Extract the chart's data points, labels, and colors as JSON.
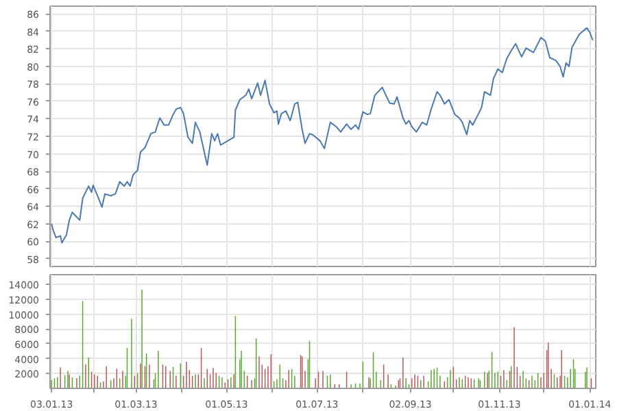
{
  "chart_data": [
    {
      "type": "line",
      "xlim": [
        "2013-01-02",
        "2014-01-05"
      ],
      "ylim": [
        57.1,
        86.9
      ],
      "xticks": [
        {
          "value": "2013-01-03",
          "label": null
        },
        {
          "value": "2013-02-01",
          "label": null
        },
        {
          "value": "2013-03-01",
          "label": null
        },
        {
          "value": "2013-04-01",
          "label": null
        },
        {
          "value": "2013-05-01",
          "label": null
        },
        {
          "value": "2013-06-01",
          "label": null
        },
        {
          "value": "2013-07-01",
          "label": null
        },
        {
          "value": "2013-08-01",
          "label": null
        },
        {
          "value": "2013-09-02",
          "label": null
        },
        {
          "value": "2013-10-01",
          "label": null
        },
        {
          "value": "2013-11-01",
          "label": null
        },
        {
          "value": "2013-12-01",
          "label": null
        },
        {
          "value": "2014-01-01",
          "label": null
        }
      ],
      "yticks": [
        58,
        60,
        62,
        64,
        66,
        68,
        70,
        72,
        74,
        76,
        78,
        80,
        82,
        84,
        86
      ],
      "grid": true,
      "tick_labels": "y",
      "series": [
        {
          "color": "#4a78b0",
          "x": [
            "2013-01-03",
            "2013-01-04",
            "2013-01-06",
            "2013-01-09",
            "2013-01-10",
            "2013-01-13",
            "2013-01-15",
            "2013-01-17",
            "2013-01-22",
            "2013-01-24",
            "2013-01-28",
            "2013-01-30",
            "2013-01-31",
            "2013-02-03",
            "2013-02-06",
            "2013-02-08",
            "2013-02-12",
            "2013-02-15",
            "2013-02-18",
            "2013-02-21",
            "2013-02-23",
            "2013-02-25",
            "2013-02-27",
            "2013-03-02",
            "2013-03-04",
            "2013-03-07",
            "2013-03-09",
            "2013-03-11",
            "2013-03-14",
            "2013-03-17",
            "2013-03-20",
            "2013-03-23",
            "2013-03-26",
            "2013-03-28",
            "2013-03-31",
            "2013-04-02",
            "2013-04-05",
            "2013-04-08",
            "2013-04-10",
            "2013-04-13",
            "2013-04-16",
            "2013-04-18",
            "2013-04-21",
            "2013-04-23",
            "2013-04-25",
            "2013-04-27",
            "2013-05-02",
            "2013-05-06",
            "2013-05-07",
            "2013-05-10",
            "2013-05-14",
            "2013-05-16",
            "2013-05-18",
            "2013-05-22",
            "2013-05-24",
            "2013-05-27",
            "2013-05-30",
            "2013-06-02",
            "2013-06-04",
            "2013-06-05",
            "2013-06-07",
            "2013-06-10",
            "2013-06-13",
            "2013-06-16",
            "2013-06-18",
            "2013-06-21",
            "2013-06-23",
            "2013-06-26",
            "2013-06-28",
            "2013-07-03",
            "2013-07-06",
            "2013-07-10",
            "2013-07-14",
            "2013-07-17",
            "2013-07-21",
            "2013-07-24",
            "2013-07-27",
            "2013-07-29",
            "2013-08-01",
            "2013-08-04",
            "2013-08-06",
            "2013-08-09",
            "2013-08-14",
            "2013-08-19",
            "2013-08-22",
            "2013-08-24",
            "2013-08-28",
            "2013-08-30",
            "2013-09-01",
            "2013-09-03",
            "2013-09-06",
            "2013-09-10",
            "2013-09-13",
            "2013-09-16",
            "2013-09-20",
            "2013-09-22",
            "2013-09-25",
            "2013-09-28",
            "2013-10-02",
            "2013-10-05",
            "2013-10-07",
            "2013-10-10",
            "2013-10-12",
            "2013-10-14",
            "2013-10-18",
            "2013-10-20",
            "2013-10-22",
            "2013-10-26",
            "2013-10-28",
            "2013-10-31",
            "2013-11-03",
            "2013-11-06",
            "2013-11-09",
            "2013-11-12",
            "2013-11-16",
            "2013-11-19",
            "2013-11-22",
            "2013-11-24",
            "2013-11-29",
            "2013-12-02",
            "2013-12-05",
            "2013-12-09",
            "2013-12-12",
            "2013-12-14",
            "2013-12-16",
            "2013-12-18",
            "2013-12-20",
            "2013-12-25",
            "2013-12-30",
            "2014-01-01",
            "2014-01-03"
          ],
          "values": [
            62.0,
            61.3,
            60.4,
            60.6,
            59.8,
            60.7,
            62.4,
            63.3,
            62.4,
            64.9,
            66.3,
            65.6,
            66.4,
            65.2,
            63.9,
            65.4,
            65.2,
            65.4,
            66.8,
            66.3,
            66.8,
            66.3,
            67.6,
            68.1,
            70.2,
            70.7,
            71.5,
            72.3,
            72.5,
            74.1,
            73.3,
            73.3,
            74.5,
            75.1,
            75.3,
            74.6,
            71.9,
            71.2,
            73.6,
            72.5,
            70.2,
            68.7,
            72.3,
            71.5,
            72.3,
            71.0,
            71.5,
            71.9,
            75.0,
            76.2,
            76.7,
            77.4,
            76.3,
            78.1,
            76.7,
            78.4,
            75.7,
            74.7,
            74.9,
            73.4,
            74.6,
            74.9,
            73.8,
            75.7,
            75.9,
            72.8,
            71.2,
            72.3,
            72.2,
            71.5,
            70.6,
            73.6,
            73.1,
            72.5,
            73.4,
            72.8,
            73.3,
            72.8,
            74.8,
            74.5,
            74.6,
            76.7,
            77.6,
            75.8,
            75.7,
            76.5,
            74.1,
            73.4,
            73.8,
            73.1,
            72.5,
            73.6,
            73.3,
            75.1,
            77.1,
            76.7,
            75.7,
            76.2,
            74.5,
            74.1,
            73.6,
            72.2,
            73.8,
            73.3,
            74.6,
            75.3,
            77.1,
            76.7,
            78.6,
            79.7,
            79.3,
            80.9,
            81.8,
            82.6,
            81.1,
            82.1,
            81.8,
            81.6,
            83.3,
            82.9,
            81.0,
            80.7,
            80.0,
            78.8,
            80.4,
            80.0,
            82.2,
            83.7,
            84.4,
            83.9,
            83.0
          ]
        }
      ]
    },
    {
      "type": "bar",
      "xlim": [
        "2013-01-02",
        "2014-01-05"
      ],
      "ylim": [
        0,
        15300
      ],
      "xticks": [
        {
          "value": "2013-01-03",
          "label": "03.01.13"
        },
        {
          "value": "2013-02-01",
          "label": null
        },
        {
          "value": "2013-03-01",
          "label": "01.03.13"
        },
        {
          "value": "2013-04-01",
          "label": null
        },
        {
          "value": "2013-05-01",
          "label": "01.05.13"
        },
        {
          "value": "2013-06-01",
          "label": null
        },
        {
          "value": "2013-07-01",
          "label": "01.07.13"
        },
        {
          "value": "2013-08-01",
          "label": null
        },
        {
          "value": "2013-09-02",
          "label": "02.09.13"
        },
        {
          "value": "2013-10-01",
          "label": null
        },
        {
          "value": "2013-11-01",
          "label": "01.11.13"
        },
        {
          "value": "2013-12-01",
          "label": null
        },
        {
          "value": "2014-01-01",
          "label": "01.01.14"
        }
      ],
      "yticks": [
        2000,
        4000,
        6000,
        8000,
        10000,
        12000,
        14000
      ],
      "grid": true,
      "series": [
        {
          "color": "#5aa832",
          "x": [
            "2013-01-03",
            "2013-01-05",
            "2013-01-07",
            "2013-01-12",
            "2013-01-14",
            "2013-01-17",
            "2013-01-22",
            "2013-01-24",
            "2013-01-28",
            "2013-02-05",
            "2013-02-12",
            "2013-02-18",
            "2013-02-22",
            "2013-02-23",
            "2013-02-26",
            "2013-03-02",
            "2013-03-05",
            "2013-03-08",
            "2013-03-13",
            "2013-03-14",
            "2013-03-16",
            "2013-03-26",
            "2013-03-31",
            "2013-04-10",
            "2013-04-16",
            "2013-04-26",
            "2013-04-28",
            "2013-05-04",
            "2013-05-07",
            "2013-05-10",
            "2013-05-11",
            "2013-05-13",
            "2013-05-20",
            "2013-05-21",
            "2013-06-02",
            "2013-06-04",
            "2013-06-06",
            "2013-06-08",
            "2013-06-14",
            "2013-06-16",
            "2013-06-25",
            "2013-06-26",
            "2013-07-08",
            "2013-07-10",
            "2013-07-24",
            "2013-07-27",
            "2013-07-30",
            "2013-08-01",
            "2013-08-06",
            "2013-08-08",
            "2013-08-10",
            "2013-08-13",
            "2013-08-20",
            "2013-08-23",
            "2013-08-30",
            "2013-09-01",
            "2013-09-09",
            "2013-09-14",
            "2013-09-16",
            "2013-09-18",
            "2013-09-20",
            "2013-09-22",
            "2013-09-27",
            "2013-09-29",
            "2013-10-05",
            "2013-10-07",
            "2013-10-15",
            "2013-10-18",
            "2013-10-19",
            "2013-10-22",
            "2013-10-25",
            "2013-10-27",
            "2013-10-29",
            "2013-10-31",
            "2013-11-06",
            "2013-11-09",
            "2013-11-17",
            "2013-11-19",
            "2013-11-23",
            "2013-11-25",
            "2013-11-27",
            "2013-12-08",
            "2013-12-15",
            "2013-12-17",
            "2013-12-19",
            "2013-12-21",
            "2013-12-22",
            "2013-12-29",
            "2013-12-30"
          ],
          "values": [
            1100,
            1350,
            1500,
            1800,
            2350,
            1500,
            1700,
            11760,
            4150,
            800,
            1100,
            1350,
            1700,
            5430,
            9350,
            2070,
            13270,
            4700,
            1230,
            2070,
            5040,
            2900,
            3360,
            1900,
            1350,
            1700,
            1500,
            1500,
            9740,
            3920,
            5040,
            2350,
            1350,
            6720,
            950,
            1230,
            3200,
            1350,
            2630,
            1700,
            3920,
            6380,
            1700,
            1900,
            560,
            670,
            670,
            3580,
            1350,
            4870,
            2240,
            1100,
            560,
            390,
            1350,
            560,
            1100,
            950,
            2460,
            2630,
            2800,
            1700,
            1500,
            2460,
            1500,
            1230,
            1230,
            1350,
            1100,
            2240,
            2350,
            4870,
            2070,
            2240,
            1100,
            3000,
            2350,
            1350,
            1700,
            1100,
            2070,
            1900,
            1700,
            1500,
            2630,
            3920,
            2630,
            2240,
            2800
          ]
        },
        {
          "color": "#b85a5a",
          "x": [
            "2013-01-09",
            "2013-01-15",
            "2013-01-20",
            "2013-01-26",
            "2013-01-30",
            "2013-02-01",
            "2013-02-03",
            "2013-02-07",
            "2013-02-09",
            "2013-02-14",
            "2013-02-16",
            "2013-02-20",
            "2013-02-28",
            "2013-03-04",
            "2013-03-07",
            "2013-03-10",
            "2013-03-19",
            "2013-03-21",
            "2013-03-24",
            "2013-03-28",
            "2013-04-02",
            "2013-04-04",
            "2013-04-06",
            "2013-04-08",
            "2013-04-12",
            "2013-04-14",
            "2013-04-18",
            "2013-04-20",
            "2013-04-22",
            "2013-04-24",
            "2013-04-30",
            "2013-05-02",
            "2013-05-06",
            "2013-05-15",
            "2013-05-18",
            "2013-05-23",
            "2013-05-25",
            "2013-05-27",
            "2013-05-29",
            "2013-05-31",
            "2013-06-10",
            "2013-06-12",
            "2013-06-20",
            "2013-06-21",
            "2013-06-23",
            "2013-06-30",
            "2013-07-02",
            "2013-07-05",
            "2013-07-13",
            "2013-07-16",
            "2013-07-21",
            "2013-08-05",
            "2013-08-15",
            "2013-08-18",
            "2013-08-25",
            "2013-08-26",
            "2013-08-28",
            "2013-09-03",
            "2013-09-05",
            "2013-09-07",
            "2013-09-11",
            "2013-09-25",
            "2013-10-01",
            "2013-10-03",
            "2013-10-09",
            "2013-10-11",
            "2013-10-13",
            "2013-10-24",
            "2013-11-02",
            "2013-11-04",
            "2013-11-08",
            "2013-11-11",
            "2013-11-13",
            "2013-11-15",
            "2013-11-21",
            "2013-11-29",
            "2013-12-01",
            "2013-12-03",
            "2013-12-04",
            "2013-12-06",
            "2013-12-10",
            "2013-12-12",
            "2013-12-13",
            "2014-01-02"
          ],
          "values": [
            2800,
            1900,
            1350,
            3250,
            2250,
            1900,
            1700,
            950,
            3000,
            1350,
            2650,
            2350,
            1700,
            3360,
            3000,
            3200,
            3200,
            3000,
            2350,
            1700,
            1700,
            3580,
            2460,
            1700,
            1900,
            5430,
            2630,
            1900,
            2740,
            2070,
            780,
            1230,
            1900,
            1700,
            1100,
            4300,
            3200,
            2630,
            3000,
            4600,
            1100,
            2460,
            4480,
            4300,
            2350,
            1350,
            2240,
            2350,
            560,
            560,
            2240,
            1500,
            3200,
            1900,
            1100,
            1350,
            4140,
            1350,
            1900,
            1700,
            1700,
            950,
            2900,
            1230,
            1700,
            1500,
            1350,
            2070,
            1700,
            2460,
            2350,
            8230,
            2900,
            1700,
            1100,
            1500,
            2070,
            5150,
            6160,
            2630,
            1500,
            1700,
            5150,
            1350
          ]
        }
      ]
    }
  ]
}
